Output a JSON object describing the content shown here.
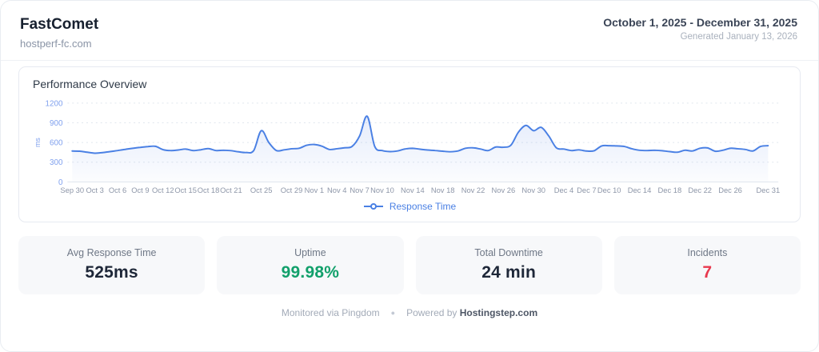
{
  "header": {
    "title": "FastComet",
    "domain": "hostperf-fc.com",
    "date_range": "October 1, 2025 - December 31, 2025",
    "generated": "Generated January 13, 2026"
  },
  "chart": {
    "title": "Performance Overview",
    "legend_label": "Response Time"
  },
  "chart_data": {
    "type": "line",
    "title": "Performance Overview",
    "xlabel": "",
    "ylabel": "ms",
    "ylim": [
      0,
      1200
    ],
    "yticks": [
      0,
      300,
      600,
      900,
      1200
    ],
    "grid": true,
    "legend_position": "bottom",
    "x_ticks_shown": [
      "Sep 30",
      "Oct 3",
      "Oct 6",
      "Oct 9",
      "Oct 12",
      "Oct 15",
      "Oct 18",
      "Oct 21",
      "Oct 25",
      "Oct 29",
      "Nov 1",
      "Nov 4",
      "Nov 7",
      "Nov 10",
      "Nov 14",
      "Nov 18",
      "Nov 22",
      "Nov 26",
      "Nov 30",
      "Dec 4",
      "Dec 7",
      "Dec 10",
      "Dec 14",
      "Dec 18",
      "Dec 22",
      "Dec 26",
      "Dec 31"
    ],
    "series": [
      {
        "name": "Response Time",
        "color": "#4a80e4",
        "x": [
          "Sep 30",
          "Oct 1",
          "Oct 2",
          "Oct 3",
          "Oct 4",
          "Oct 5",
          "Oct 6",
          "Oct 7",
          "Oct 8",
          "Oct 9",
          "Oct 10",
          "Oct 11",
          "Oct 12",
          "Oct 13",
          "Oct 14",
          "Oct 15",
          "Oct 16",
          "Oct 17",
          "Oct 18",
          "Oct 19",
          "Oct 20",
          "Oct 21",
          "Oct 22",
          "Oct 23",
          "Oct 24",
          "Oct 25",
          "Oct 26",
          "Oct 27",
          "Oct 28",
          "Oct 29",
          "Oct 30",
          "Oct 31",
          "Nov 1",
          "Nov 2",
          "Nov 3",
          "Nov 4",
          "Nov 5",
          "Nov 6",
          "Nov 7",
          "Nov 8",
          "Nov 9",
          "Nov 10",
          "Nov 11",
          "Nov 12",
          "Nov 13",
          "Nov 14",
          "Nov 15",
          "Nov 16",
          "Nov 17",
          "Nov 18",
          "Nov 19",
          "Nov 20",
          "Nov 21",
          "Nov 22",
          "Nov 23",
          "Nov 24",
          "Nov 25",
          "Nov 26",
          "Nov 27",
          "Nov 28",
          "Nov 29",
          "Nov 30",
          "Dec 1",
          "Dec 2",
          "Dec 3",
          "Dec 4",
          "Dec 5",
          "Dec 6",
          "Dec 7",
          "Dec 8",
          "Dec 9",
          "Dec 10",
          "Dec 11",
          "Dec 12",
          "Dec 13",
          "Dec 14",
          "Dec 15",
          "Dec 16",
          "Dec 17",
          "Dec 18",
          "Dec 19",
          "Dec 20",
          "Dec 21",
          "Dec 22",
          "Dec 23",
          "Dec 24",
          "Dec 25",
          "Dec 26",
          "Dec 27",
          "Dec 28",
          "Dec 29",
          "Dec 30",
          "Dec 31"
        ],
        "values": [
          470,
          468,
          452,
          438,
          446,
          462,
          478,
          496,
          512,
          526,
          538,
          542,
          492,
          478,
          486,
          500,
          478,
          490,
          508,
          478,
          482,
          476,
          458,
          448,
          478,
          780,
          600,
          478,
          488,
          505,
          512,
          558,
          570,
          545,
          495,
          505,
          520,
          540,
          700,
          1000,
          540,
          478,
          462,
          472,
          502,
          512,
          498,
          486,
          478,
          468,
          460,
          472,
          512,
          520,
          500,
          478,
          532,
          528,
          560,
          760,
          860,
          780,
          830,
          700,
          520,
          500,
          478,
          488,
          470,
          475,
          548,
          552,
          548,
          540,
          505,
          482,
          478,
          482,
          475,
          462,
          452,
          482,
          472,
          512,
          518,
          468,
          482,
          512,
          505,
          495,
          472,
          540,
          552
        ]
      }
    ]
  },
  "stats": [
    {
      "label": "Avg Response Time",
      "value": "525ms",
      "color": "#1e2738"
    },
    {
      "label": "Uptime",
      "value": "99.98%",
      "color": "#12a06b"
    },
    {
      "label": "Total Downtime",
      "value": "24 min",
      "color": "#1e2738"
    },
    {
      "label": "Incidents",
      "value": "7",
      "color": "#e8394e"
    }
  ],
  "footer": {
    "monitored": "Monitored via Pingdom",
    "separator": "●",
    "powered_prefix": "Powered by ",
    "powered_brand": "Hostingstep.com"
  },
  "colors": {
    "accent_blue": "#4a80e4",
    "axis_blue": "#7fa0ee",
    "grid": "#e0e6ee",
    "green": "#12a06b",
    "red": "#e8394e"
  }
}
